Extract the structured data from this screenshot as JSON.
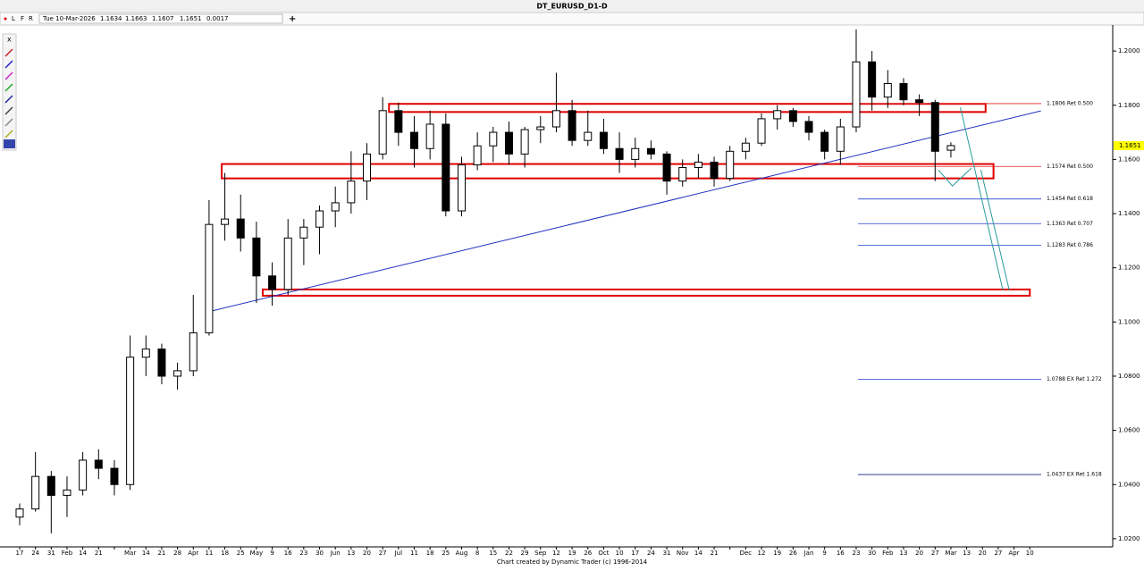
{
  "window": {
    "title": "DT_EURUSD_D1-D",
    "buttons": [
      "L",
      "F",
      "R"
    ],
    "quote": [
      "Tue 10-Mar-2026",
      "1.1634",
      "1.1663",
      "1.1607",
      "1.1651",
      "0.0017"
    ],
    "footer": "Chart created by Dynamic Trader  (c)  1996-2014"
  },
  "chart_data": {
    "type": "candlestick",
    "categories": [
      "17",
      "24",
      "31",
      "Feb",
      "14",
      "21",
      null,
      "Mar",
      "14",
      "21",
      "28",
      "Apr",
      "11",
      "18",
      "25",
      "May",
      "9",
      "16",
      "23",
      "30",
      "Jun",
      "13",
      "20",
      "27",
      "Jul",
      "11",
      "18",
      "25",
      "Aug",
      "8",
      "15",
      "22",
      "29",
      "Sep",
      "12",
      "19",
      "26",
      "Oct",
      "10",
      "17",
      "24",
      "31",
      "Nov",
      "14",
      "21",
      null,
      "Dec",
      "12",
      "19",
      "26",
      "Jan",
      "9",
      "16",
      "23",
      "30",
      "Feb",
      "13",
      "20",
      "27",
      "Mar",
      "13",
      "20",
      "27",
      "Apr",
      "10"
    ],
    "open": [
      1.028,
      1.031,
      1.043,
      1.036,
      1.038,
      1.049,
      1.046,
      1.04,
      1.087,
      1.09,
      1.08,
      1.082,
      1.096,
      1.136,
      1.138,
      1.131,
      1.117,
      1.112,
      1.131,
      1.135,
      1.141,
      1.144,
      1.152,
      1.162,
      1.178,
      1.17,
      1.164,
      1.173,
      1.141,
      1.158,
      1.165,
      1.17,
      1.162,
      1.171,
      1.172,
      1.178,
      1.167,
      1.17,
      1.164,
      1.16,
      1.164,
      1.162,
      1.152,
      1.157,
      1.159,
      1.153,
      1.163,
      1.166,
      1.175,
      1.178,
      1.174,
      1.17,
      1.163,
      1.172,
      1.196,
      1.183,
      1.188,
      1.182,
      1.181,
      1.1634,
      null,
      null,
      null,
      null,
      null
    ],
    "high": [
      1.033,
      1.052,
      1.045,
      1.043,
      1.052,
      1.053,
      1.049,
      1.095,
      1.095,
      1.092,
      1.085,
      1.11,
      1.145,
      1.155,
      1.147,
      1.137,
      1.122,
      1.138,
      1.138,
      1.143,
      1.15,
      1.163,
      1.166,
      1.183,
      1.181,
      1.176,
      1.178,
      1.177,
      1.161,
      1.17,
      1.172,
      1.174,
      1.172,
      1.176,
      1.192,
      1.182,
      1.178,
      1.175,
      1.17,
      1.168,
      1.167,
      1.163,
      1.16,
      1.162,
      1.161,
      1.165,
      1.168,
      1.177,
      1.18,
      1.179,
      1.176,
      1.171,
      1.175,
      1.208,
      1.2,
      1.193,
      1.19,
      1.184,
      1.182,
      1.1663,
      null,
      null,
      null,
      null,
      null
    ],
    "low": [
      1.025,
      1.03,
      1.022,
      1.028,
      1.036,
      1.042,
      1.036,
      1.038,
      1.08,
      1.077,
      1.075,
      1.08,
      1.095,
      1.13,
      1.126,
      1.107,
      1.106,
      1.11,
      1.121,
      1.125,
      1.135,
      1.14,
      1.145,
      1.16,
      1.165,
      1.157,
      1.16,
      1.139,
      1.139,
      1.156,
      1.159,
      1.158,
      1.157,
      1.166,
      1.17,
      1.165,
      1.165,
      1.162,
      1.155,
      1.157,
      1.16,
      1.147,
      1.15,
      1.153,
      1.15,
      1.152,
      1.16,
      1.165,
      1.171,
      1.172,
      1.167,
      1.16,
      1.158,
      1.17,
      1.178,
      1.179,
      1.18,
      1.176,
      1.152,
      1.1607,
      null,
      null,
      null,
      null,
      null
    ],
    "close": [
      1.031,
      1.043,
      1.036,
      1.038,
      1.049,
      1.046,
      1.04,
      1.087,
      1.09,
      1.08,
      1.082,
      1.096,
      1.136,
      1.138,
      1.131,
      1.117,
      1.112,
      1.131,
      1.135,
      1.141,
      1.144,
      1.152,
      1.162,
      1.178,
      1.17,
      1.164,
      1.173,
      1.141,
      1.158,
      1.165,
      1.17,
      1.162,
      1.171,
      1.172,
      1.178,
      1.167,
      1.17,
      1.164,
      1.16,
      1.164,
      1.162,
      1.152,
      1.157,
      1.159,
      1.153,
      1.163,
      1.166,
      1.175,
      1.178,
      1.174,
      1.17,
      1.163,
      1.172,
      1.196,
      1.183,
      1.188,
      1.182,
      1.181,
      1.163,
      1.1651,
      null,
      null,
      null,
      null,
      null
    ],
    "up_color": "#ffffff",
    "down_color": "#000000",
    "ylim": [
      1.017,
      1.2096
    ],
    "yticks": [
      {
        "value": 1.2,
        "label": "1.2000"
      },
      {
        "value": 1.18,
        "label": "1.1800"
      },
      {
        "value": 1.16,
        "label": "1.1600"
      },
      {
        "value": 1.14,
        "label": "1.1400"
      },
      {
        "value": 1.12,
        "label": "1.1200"
      },
      {
        "value": 1.1,
        "label": "1.1000"
      },
      {
        "value": 1.08,
        "label": "1.0800"
      },
      {
        "value": 1.06,
        "label": "1.0600"
      },
      {
        "value": 1.04,
        "label": "1.0400"
      },
      {
        "value": 1.02,
        "label": "1.0200"
      }
    ],
    "last_price": 1.1651,
    "last_color": "#ffff00",
    "levels": [
      {
        "value": 1.1806,
        "label": "1.1806  Ret 0.500",
        "color": "#e02020"
      },
      {
        "value": 1.1574,
        "label": "1.1574  Ret 0.500",
        "color": "#e02020"
      },
      {
        "value": 1.1454,
        "label": "1.1454  Ret 0.618",
        "color": "#2040d0"
      },
      {
        "value": 1.1363,
        "label": "1.1363  Ret 0.707",
        "color": "#2040d0"
      },
      {
        "value": 1.1283,
        "label": "1.1283  Ret 0.786",
        "color": "#2040d0"
      },
      {
        "value": 1.0788,
        "label": "1.0788  EX Ret 1.272",
        "color": "#2040d0"
      },
      {
        "value": 1.0437,
        "label": "1.0437  EX Ret 1.618",
        "color": "#102080"
      }
    ],
    "zones": [
      {
        "from": 23.4,
        "to": 61.2,
        "low": 1.1775,
        "high": 1.1805
      },
      {
        "from": 12.8,
        "to": 61.7,
        "low": 1.153,
        "high": 1.1583
      },
      {
        "from": 15.4,
        "to": 64,
        "low": 1.1097,
        "high": 1.112
      }
    ],
    "zone_color": "#e00000",
    "trendline": {
      "from": [
        12.2,
        1.1041
      ],
      "to": [
        64.7,
        1.1779
      ],
      "color": "#2030c0"
    },
    "projections": {
      "color": "#2a9a9a",
      "paths": [
        [
          [
            59.6,
            1.1792
          ],
          [
            62.3,
            1.1116
          ]
        ],
        [
          [
            60.9,
            1.1561
          ],
          [
            62.7,
            1.1116
          ]
        ],
        [
          [
            58.2,
            1.1561
          ],
          [
            59.1,
            1.1502
          ],
          [
            60.3,
            1.1568
          ]
        ]
      ]
    }
  }
}
